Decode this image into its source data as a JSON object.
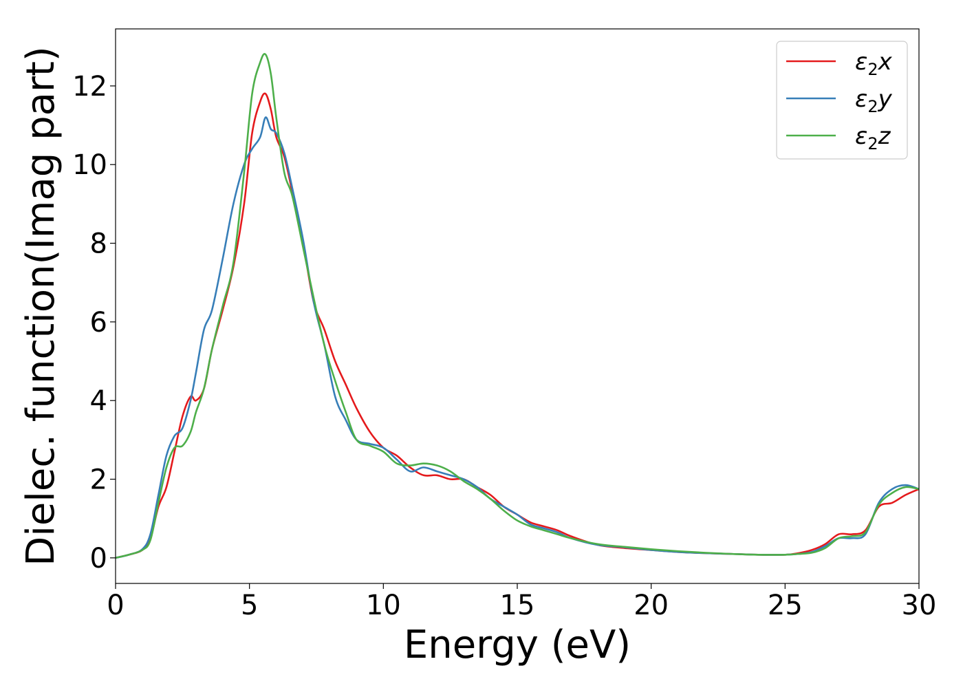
{
  "chart_data": {
    "type": "line",
    "title": "",
    "xlabel": "Energy (eV)",
    "ylabel": "Dielec. function(Imag part)",
    "xlim": [
      0,
      30
    ],
    "ylim": [
      -0.65,
      13.45
    ],
    "xticks": [
      0,
      5,
      10,
      15,
      20,
      25,
      30
    ],
    "yticks": [
      0,
      2,
      4,
      6,
      8,
      10,
      12
    ],
    "grid": false,
    "legend_position": "top-right",
    "series": [
      {
        "name": "ε2x",
        "legend_base": "ε",
        "legend_sub": "2",
        "legend_suffix": "x",
        "color": "#e41a1c",
        "x": [
          0,
          0.5,
          1.0,
          1.3,
          1.6,
          1.9,
          2.2,
          2.5,
          2.8,
          3.0,
          3.3,
          3.6,
          4.0,
          4.4,
          4.8,
          5.1,
          5.4,
          5.6,
          5.8,
          6.0,
          6.3,
          6.6,
          7.0,
          7.4,
          7.8,
          8.2,
          8.6,
          9.0,
          9.5,
          10.0,
          10.5,
          11.0,
          11.5,
          12.0,
          12.5,
          13.0,
          13.5,
          14.0,
          14.5,
          15.0,
          15.5,
          16.0,
          16.5,
          17.0,
          18.0,
          19.0,
          20.0,
          21.0,
          22.0,
          23.0,
          24.0,
          25.0,
          25.5,
          26.0,
          26.5,
          27.0,
          27.5,
          28.0,
          28.5,
          29.0,
          29.5,
          30.0
        ],
        "values": [
          0,
          0.08,
          0.2,
          0.5,
          1.3,
          1.8,
          2.7,
          3.6,
          4.1,
          4.0,
          4.3,
          5.3,
          6.3,
          7.4,
          9.0,
          10.8,
          11.6,
          11.8,
          11.4,
          10.7,
          10.2,
          9.3,
          8.0,
          6.5,
          5.8,
          5.0,
          4.4,
          3.8,
          3.2,
          2.8,
          2.6,
          2.3,
          2.1,
          2.1,
          2.0,
          2.0,
          1.8,
          1.6,
          1.3,
          1.1,
          0.9,
          0.8,
          0.7,
          0.55,
          0.33,
          0.25,
          0.2,
          0.15,
          0.12,
          0.1,
          0.08,
          0.08,
          0.12,
          0.2,
          0.35,
          0.6,
          0.6,
          0.7,
          1.3,
          1.4,
          1.6,
          1.75
        ]
      },
      {
        "name": "ε2y",
        "legend_base": "ε",
        "legend_sub": "2",
        "legend_suffix": "y",
        "color": "#377eb8",
        "x": [
          0,
          0.5,
          1.0,
          1.3,
          1.6,
          1.9,
          2.2,
          2.5,
          2.8,
          3.0,
          3.3,
          3.6,
          4.0,
          4.4,
          4.8,
          5.1,
          5.4,
          5.6,
          5.8,
          6.0,
          6.3,
          6.6,
          7.0,
          7.4,
          7.8,
          8.2,
          8.6,
          9.0,
          9.5,
          10.0,
          10.5,
          11.0,
          11.5,
          12.0,
          12.5,
          13.0,
          13.5,
          14.0,
          14.5,
          15.0,
          15.5,
          16.0,
          16.5,
          17.0,
          18.0,
          19.0,
          20.0,
          21.0,
          22.0,
          23.0,
          24.0,
          25.0,
          25.5,
          26.0,
          26.5,
          27.0,
          27.5,
          28.0,
          28.5,
          29.0,
          29.5,
          30.0
        ],
        "values": [
          0,
          0.08,
          0.22,
          0.6,
          1.6,
          2.6,
          3.1,
          3.3,
          4.0,
          4.7,
          5.8,
          6.3,
          7.6,
          9.0,
          10.0,
          10.4,
          10.7,
          11.2,
          10.9,
          10.8,
          10.3,
          9.4,
          8.1,
          6.5,
          5.4,
          4.1,
          3.5,
          3.0,
          2.9,
          2.8,
          2.5,
          2.2,
          2.3,
          2.2,
          2.1,
          2.0,
          1.8,
          1.5,
          1.3,
          1.1,
          0.85,
          0.75,
          0.65,
          0.5,
          0.33,
          0.27,
          0.2,
          0.15,
          0.12,
          0.1,
          0.08,
          0.08,
          0.1,
          0.15,
          0.3,
          0.5,
          0.5,
          0.6,
          1.4,
          1.75,
          1.85,
          1.75
        ]
      },
      {
        "name": "ε2z",
        "legend_base": "ε",
        "legend_sub": "2",
        "legend_suffix": "z",
        "color": "#4daf4a",
        "x": [
          0,
          0.5,
          1.0,
          1.3,
          1.6,
          1.9,
          2.2,
          2.5,
          2.8,
          3.0,
          3.3,
          3.6,
          4.0,
          4.4,
          4.8,
          5.1,
          5.4,
          5.6,
          5.8,
          6.0,
          6.3,
          6.6,
          7.0,
          7.4,
          7.8,
          8.2,
          8.6,
          9.0,
          9.5,
          10.0,
          10.5,
          11.0,
          11.5,
          12.0,
          12.5,
          13.0,
          13.5,
          14.0,
          14.5,
          15.0,
          15.5,
          16.0,
          16.5,
          17.0,
          18.0,
          19.0,
          20.0,
          21.0,
          22.0,
          23.0,
          24.0,
          25.0,
          25.5,
          26.0,
          26.5,
          27.0,
          27.5,
          28.0,
          28.5,
          29.0,
          29.5,
          30.0
        ],
        "values": [
          0,
          0.08,
          0.2,
          0.45,
          1.4,
          2.3,
          2.8,
          2.85,
          3.2,
          3.7,
          4.3,
          5.3,
          6.4,
          7.5,
          9.8,
          11.8,
          12.6,
          12.8,
          12.3,
          11.2,
          9.8,
          9.2,
          7.9,
          6.6,
          5.4,
          4.5,
          3.7,
          3.0,
          2.85,
          2.7,
          2.4,
          2.35,
          2.4,
          2.35,
          2.2,
          1.95,
          1.75,
          1.5,
          1.2,
          0.95,
          0.8,
          0.7,
          0.6,
          0.5,
          0.35,
          0.28,
          0.22,
          0.17,
          0.13,
          0.1,
          0.08,
          0.08,
          0.1,
          0.13,
          0.25,
          0.5,
          0.55,
          0.65,
          1.35,
          1.65,
          1.8,
          1.75
        ]
      }
    ]
  }
}
